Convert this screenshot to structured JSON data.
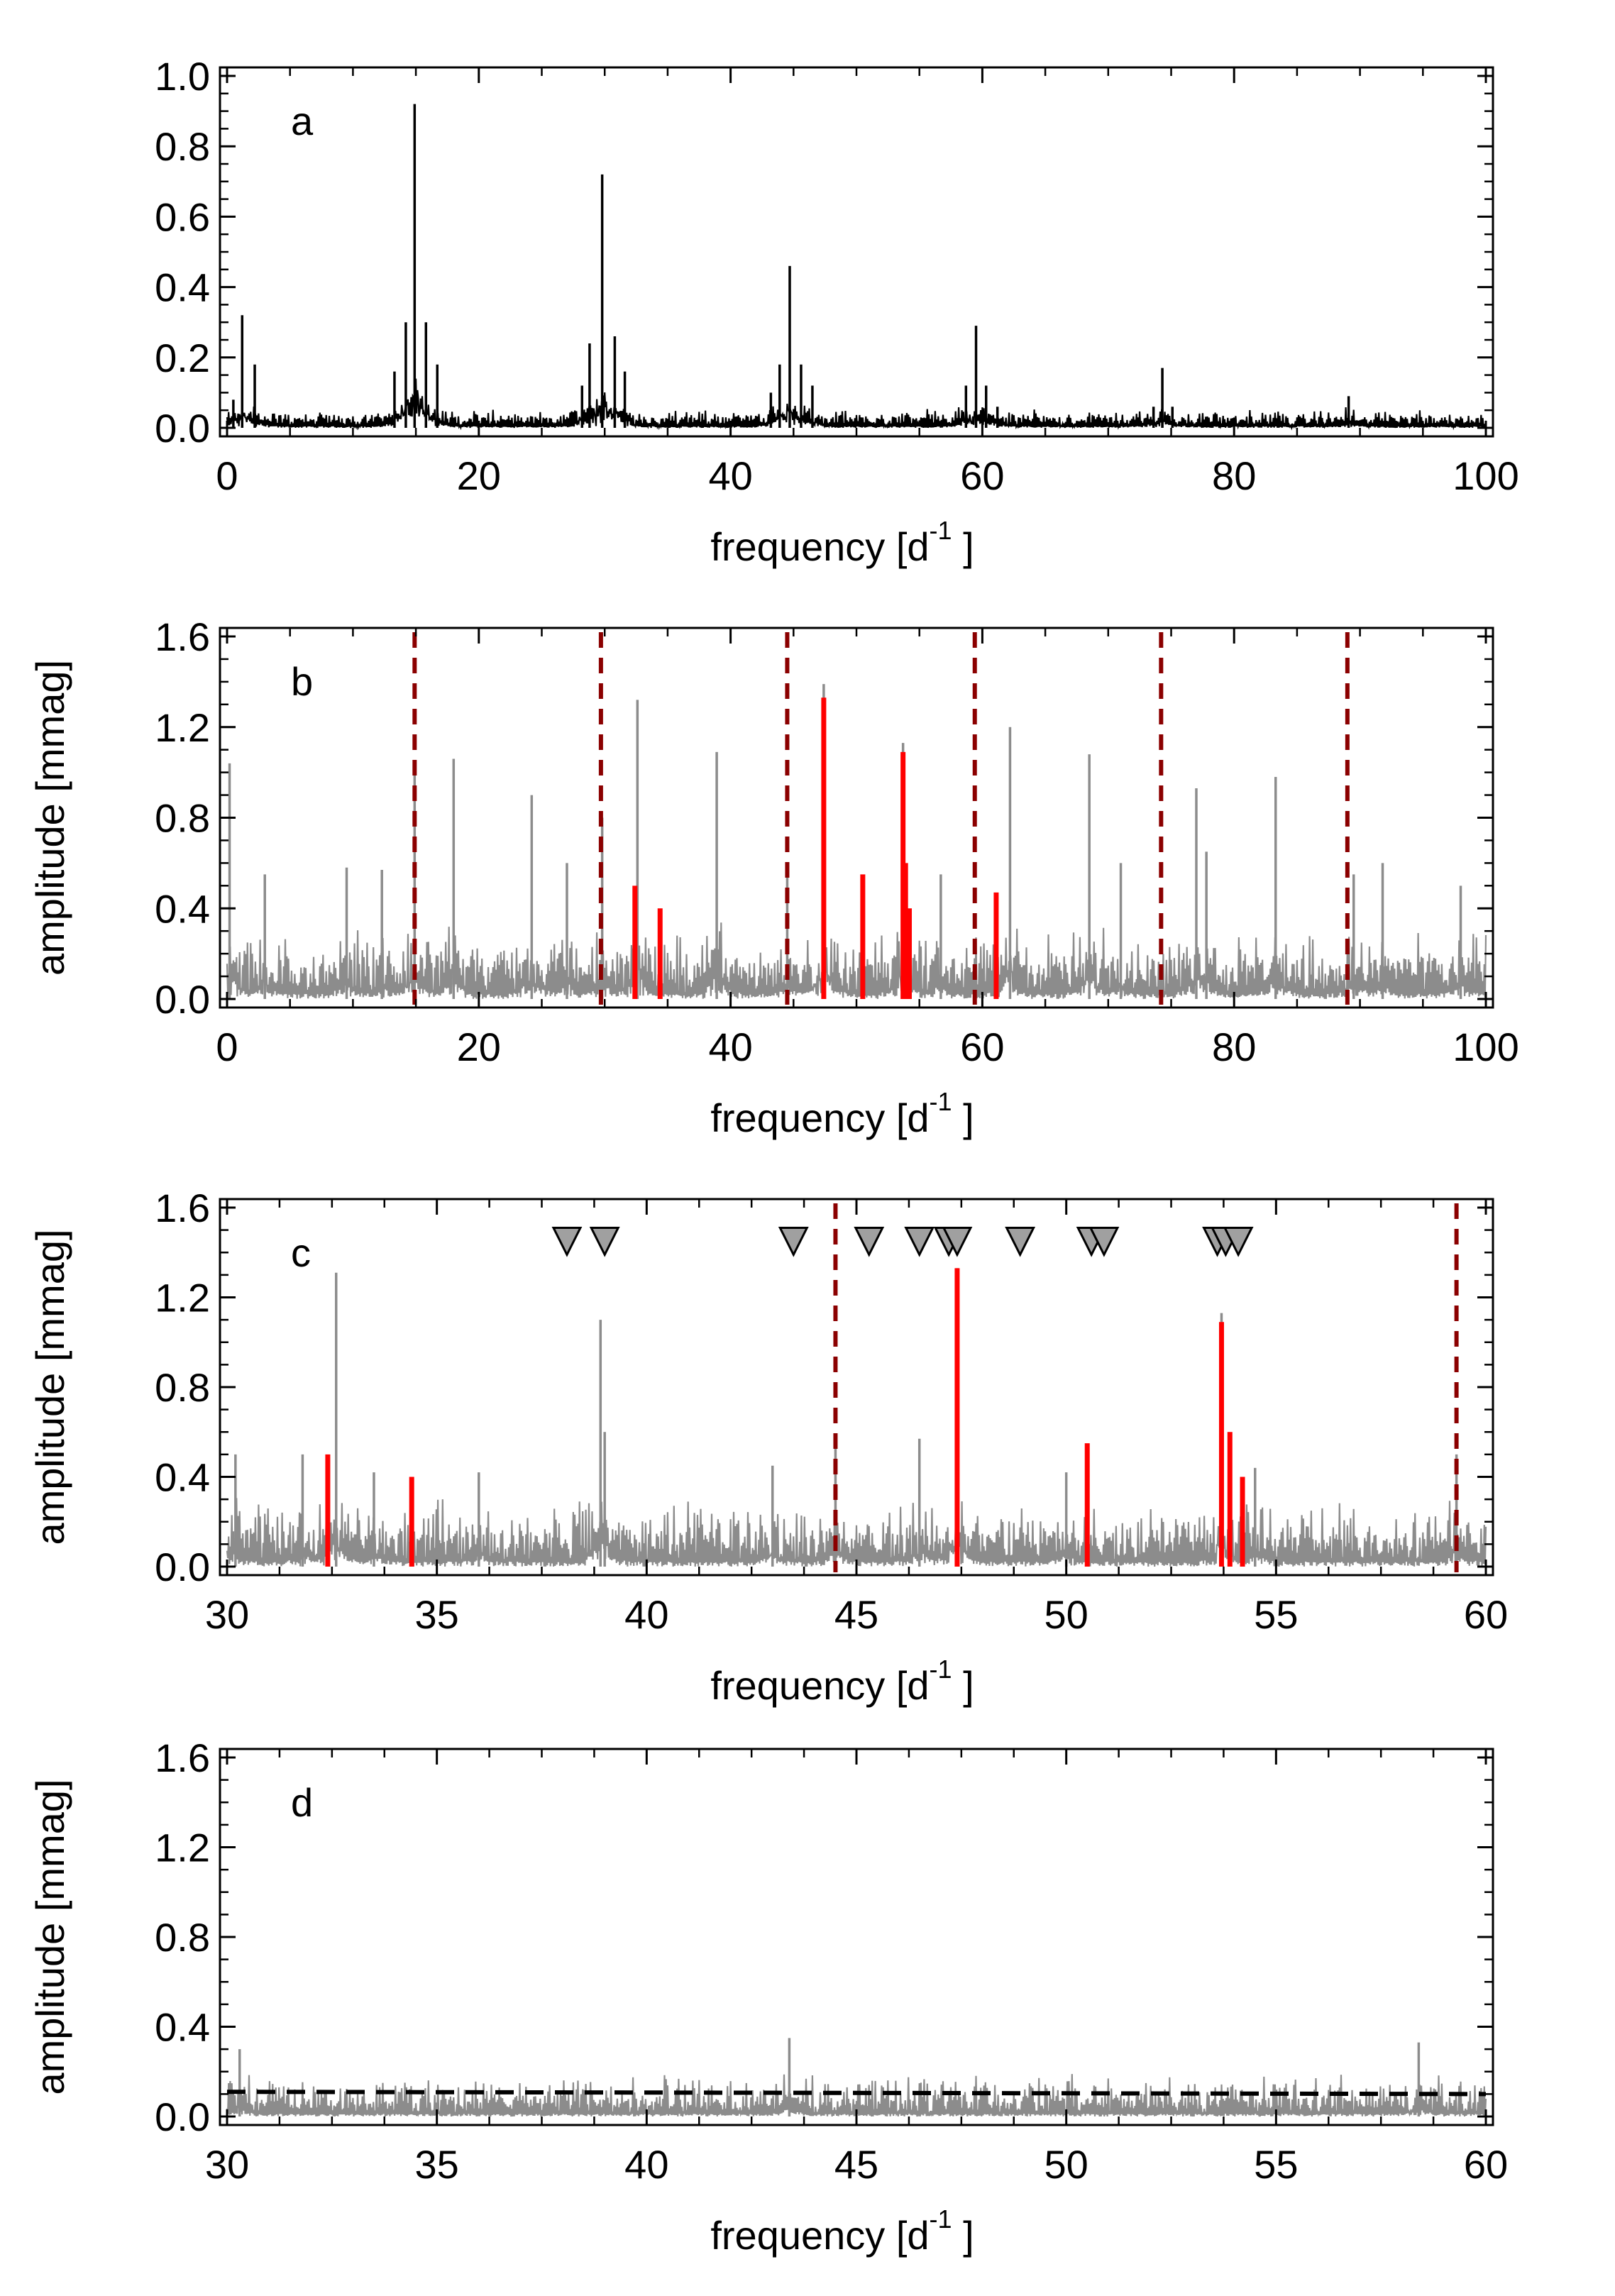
{
  "chart_data": [
    {
      "panel": "a",
      "type": "line",
      "title": "",
      "panel_label": "a",
      "xlabel": "frequency [d",
      "xlabel_sup": "-1",
      "xlabel_close": "]",
      "ylabel": "",
      "xlim": [
        0,
        100
      ],
      "ylim": [
        0,
        1.0
      ],
      "xticks": [
        "0",
        "20",
        "40",
        "60",
        "80",
        "100"
      ],
      "yticks": [
        "0.0",
        "0.2",
        "0.4",
        "0.6",
        "0.8",
        "1.0"
      ],
      "series_color": "#000000",
      "noise": {
        "level": 0.03,
        "amp": 0.025
      },
      "peaks": [
        {
          "x": 0.5,
          "y": 0.08
        },
        {
          "x": 1.2,
          "y": 0.32
        },
        {
          "x": 2.2,
          "y": 0.18
        },
        {
          "x": 13.3,
          "y": 0.16
        },
        {
          "x": 14.2,
          "y": 0.3
        },
        {
          "x": 14.9,
          "y": 0.92
        },
        {
          "x": 15.8,
          "y": 0.3
        },
        {
          "x": 16.7,
          "y": 0.18
        },
        {
          "x": 28.2,
          "y": 0.12
        },
        {
          "x": 28.8,
          "y": 0.24
        },
        {
          "x": 29.8,
          "y": 0.72
        },
        {
          "x": 30.8,
          "y": 0.26
        },
        {
          "x": 31.6,
          "y": 0.16
        },
        {
          "x": 43.2,
          "y": 0.1
        },
        {
          "x": 43.9,
          "y": 0.18
        },
        {
          "x": 44.7,
          "y": 0.46
        },
        {
          "x": 45.6,
          "y": 0.18
        },
        {
          "x": 46.5,
          "y": 0.12
        },
        {
          "x": 58.7,
          "y": 0.12
        },
        {
          "x": 59.5,
          "y": 0.29
        },
        {
          "x": 60.3,
          "y": 0.12
        },
        {
          "x": 61.2,
          "y": 0.06
        },
        {
          "x": 73.6,
          "y": 0.06
        },
        {
          "x": 74.3,
          "y": 0.17
        },
        {
          "x": 75.1,
          "y": 0.06
        },
        {
          "x": 89.1,
          "y": 0.09
        }
      ]
    },
    {
      "panel": "b",
      "type": "line",
      "title": "",
      "panel_label": "b",
      "xlabel": "frequency [d",
      "xlabel_sup": "-1",
      "xlabel_close": "]",
      "ylabel": "amplitude [mmag]",
      "xlim": [
        0,
        100
      ],
      "ylim": [
        0,
        1.6
      ],
      "xticks": [
        "0",
        "20",
        "40",
        "60",
        "80",
        "100"
      ],
      "yticks": [
        "0.0",
        "0.4",
        "0.8",
        "1.2",
        "1.6"
      ],
      "series_color": "#8c8c8c",
      "noise": {
        "level": 0.15,
        "amp": 0.16
      },
      "peaks": [
        {
          "x": 0.2,
          "y": 1.04
        },
        {
          "x": 3.0,
          "y": 0.55
        },
        {
          "x": 9.5,
          "y": 0.58
        },
        {
          "x": 12.3,
          "y": 0.57
        },
        {
          "x": 14.9,
          "y": 1.05
        },
        {
          "x": 18.0,
          "y": 1.06
        },
        {
          "x": 24.2,
          "y": 0.9
        },
        {
          "x": 27.0,
          "y": 0.6
        },
        {
          "x": 29.8,
          "y": 0.8
        },
        {
          "x": 32.6,
          "y": 1.32
        },
        {
          "x": 38.9,
          "y": 1.09
        },
        {
          "x": 44.5,
          "y": 0.55
        },
        {
          "x": 47.4,
          "y": 1.39
        },
        {
          "x": 53.7,
          "y": 1.13
        },
        {
          "x": 56.7,
          "y": 0.55
        },
        {
          "x": 62.2,
          "y": 1.2
        },
        {
          "x": 68.5,
          "y": 1.08
        },
        {
          "x": 71.0,
          "y": 0.6
        },
        {
          "x": 77.0,
          "y": 0.93
        },
        {
          "x": 77.8,
          "y": 0.65
        },
        {
          "x": 83.3,
          "y": 0.98
        },
        {
          "x": 89.5,
          "y": 0.55
        },
        {
          "x": 91.8,
          "y": 0.6
        },
        {
          "x": 98.0,
          "y": 0.5
        }
      ],
      "red_lines": [
        {
          "x": 32.4,
          "y": 0.5
        },
        {
          "x": 34.4,
          "y": 0.4
        },
        {
          "x": 47.4,
          "y": 1.33
        },
        {
          "x": 50.5,
          "y": 0.55
        },
        {
          "x": 53.7,
          "y": 1.09
        },
        {
          "x": 53.9,
          "y": 0.6
        },
        {
          "x": 54.2,
          "y": 0.4
        },
        {
          "x": 61.1,
          "y": 0.47
        }
      ],
      "dashed_lines": [
        14.9,
        29.7,
        44.5,
        59.4,
        74.2,
        89.0
      ],
      "red_color": "#ff0000",
      "dashed_color": "#8b0000"
    },
    {
      "panel": "c",
      "type": "line",
      "title": "",
      "panel_label": "c",
      "xlabel": "frequency [d",
      "xlabel_sup": "-1",
      "xlabel_close": "]",
      "ylabel": "amplitude [mmag]",
      "xlim": [
        30,
        60
      ],
      "ylim": [
        0,
        1.6
      ],
      "xticks": [
        "30",
        "35",
        "40",
        "45",
        "50",
        "55",
        "60"
      ],
      "yticks": [
        "0.0",
        "0.4",
        "0.8",
        "1.2",
        "1.6"
      ],
      "series_color": "#8c8c8c",
      "noise": {
        "level": 0.15,
        "amp": 0.16
      },
      "peaks": [
        {
          "x": 30.2,
          "y": 0.5
        },
        {
          "x": 31.8,
          "y": 0.5
        },
        {
          "x": 32.6,
          "y": 1.31
        },
        {
          "x": 33.5,
          "y": 0.42
        },
        {
          "x": 36.0,
          "y": 0.42
        },
        {
          "x": 38.9,
          "y": 1.1
        },
        {
          "x": 39.0,
          "y": 0.6
        },
        {
          "x": 43.0,
          "y": 0.45
        },
        {
          "x": 44.5,
          "y": 0.57
        },
        {
          "x": 46.5,
          "y": 0.57
        },
        {
          "x": 47.4,
          "y": 1.33
        },
        {
          "x": 50.0,
          "y": 0.42
        },
        {
          "x": 53.7,
          "y": 1.13
        },
        {
          "x": 54.5,
          "y": 0.44
        },
        {
          "x": 59.3,
          "y": 0.5
        }
      ],
      "red_lines": [
        {
          "x": 32.4,
          "y": 0.5
        },
        {
          "x": 34.4,
          "y": 0.4
        },
        {
          "x": 47.4,
          "y": 1.33
        },
        {
          "x": 50.5,
          "y": 0.55
        },
        {
          "x": 53.7,
          "y": 1.09
        },
        {
          "x": 53.9,
          "y": 0.6
        },
        {
          "x": 54.2,
          "y": 0.4
        }
      ],
      "dashed_lines": [
        44.5,
        59.3
      ],
      "triangles": [
        38.1,
        39.0,
        43.5,
        45.3,
        46.5,
        47.2,
        47.4,
        48.9,
        50.6,
        50.9,
        53.6,
        53.8,
        54.1
      ],
      "triangle_y": 1.45,
      "red_color": "#ff0000",
      "dashed_color": "#8b0000",
      "triangle_color": "#a0a0a0"
    },
    {
      "panel": "d",
      "type": "line",
      "title": "",
      "panel_label": "d",
      "xlabel": "frequency [d",
      "xlabel_sup": "-1",
      "xlabel_close": "]",
      "ylabel": "amplitude [mmag]",
      "xlim": [
        30,
        60
      ],
      "ylim": [
        0,
        1.6
      ],
      "xticks": [
        "30",
        "35",
        "40",
        "45",
        "50",
        "55",
        "60"
      ],
      "yticks": [
        "0.0",
        "0.4",
        "0.8",
        "1.2",
        "1.6"
      ],
      "series_color": "#8c8c8c",
      "noise": {
        "level": 0.08,
        "amp": 0.12
      },
      "peaks": [
        {
          "x": 30.3,
          "y": 0.3
        },
        {
          "x": 43.4,
          "y": 0.35
        },
        {
          "x": 58.4,
          "y": 0.33
        }
      ],
      "threshold_line": {
        "y_start": 0.11,
        "y_end": 0.1,
        "style": "dashed",
        "color": "#000000"
      }
    }
  ]
}
